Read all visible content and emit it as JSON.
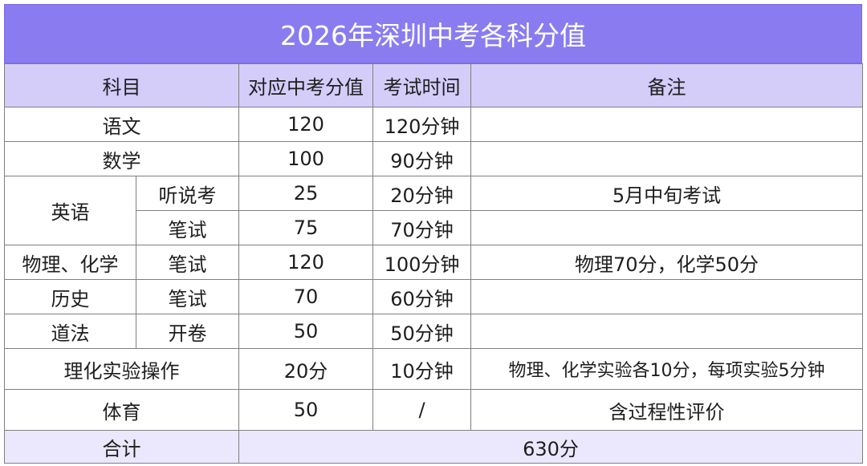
{
  "title": "2026年深圳中考各科分值",
  "headers": {
    "subject": "科目",
    "score": "对应中考分值",
    "time": "考试时间",
    "note": "备注"
  },
  "rows": {
    "chinese": {
      "subject": "语文",
      "score": "120",
      "time": "120分钟",
      "note": ""
    },
    "math": {
      "subject": "数学",
      "score": "100",
      "time": "90分钟",
      "note": ""
    },
    "english": {
      "subject": "英语",
      "listening": {
        "part": "听说考",
        "score": "25",
        "time": "20分钟",
        "note": "5月中旬考试"
      },
      "written": {
        "part": "笔试",
        "score": "75",
        "time": "70分钟",
        "note": ""
      }
    },
    "phys_chem": {
      "subject": "物理、化学",
      "part": "笔试",
      "score": "120",
      "time": "100分钟",
      "note": "物理70分，化学50分"
    },
    "history": {
      "subject": "历史",
      "part": "笔试",
      "score": "70",
      "time": "60分钟",
      "note": ""
    },
    "morality": {
      "subject": "道法",
      "part": "开卷",
      "score": "50",
      "time": "50分钟",
      "note": ""
    },
    "lab": {
      "subject": "理化实验操作",
      "score": "20分",
      "time": "10分钟",
      "note": "物理、化学实验各10分，每项实验5分钟"
    },
    "pe": {
      "subject": "体育",
      "score": "50",
      "time": "/",
      "note": "含过程性评价"
    }
  },
  "total": {
    "label": "合计",
    "value": "630分"
  },
  "colors": {
    "title_bg": "#8a7cf0",
    "header_bg": "#d4cdfa",
    "total_bg": "#ebe8fd",
    "border": "#7f7f7f"
  }
}
